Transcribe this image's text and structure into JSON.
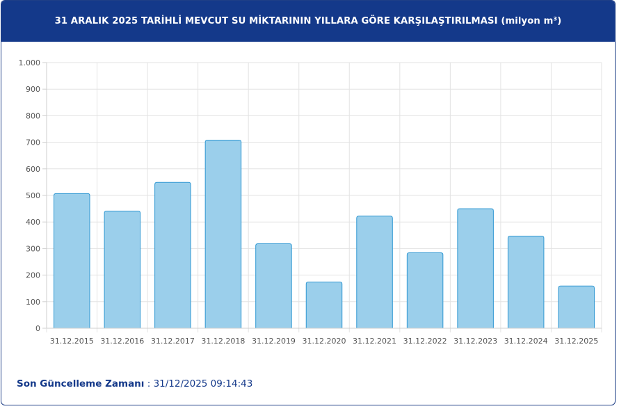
{
  "header": {
    "title": "31 ARALIK 2025 TARİHLİ MEVCUT SU MİKTARININ YILLARA GÖRE KARŞILAŞTIRILMASI (milyon m³)"
  },
  "footer": {
    "label": "Son Güncelleme Zamanı",
    "separator": " : ",
    "value": "31/12/2025 09:14:43"
  },
  "colors": {
    "header_bg": "#14398a",
    "bar_fill": "#9bcfeb",
    "bar_stroke": "#2f97d2",
    "grid": "#e3e3e3"
  },
  "chart_data": {
    "type": "bar",
    "title": "31 ARALIK 2025 TARİHLİ MEVCUT SU MİKTARININ YILLARA GÖRE KARŞILAŞTIRILMASI (milyon m³)",
    "categories": [
      "31.12.2015",
      "31.12.2016",
      "31.12.2017",
      "31.12.2018",
      "31.12.2019",
      "31.12.2020",
      "31.12.2021",
      "31.12.2022",
      "31.12.2023",
      "31.12.2024",
      "31.12.2025"
    ],
    "values": [
      507,
      441,
      549,
      708,
      318,
      174,
      422,
      284,
      450,
      347,
      159
    ],
    "ylim": [
      0,
      1000
    ],
    "yticks": [
      0,
      100,
      200,
      300,
      400,
      500,
      600,
      700,
      800,
      900,
      1000
    ],
    "ytick_labels": [
      "0",
      "100",
      "200",
      "300",
      "400",
      "500",
      "600",
      "700",
      "800",
      "900",
      "1.000"
    ],
    "grid": true,
    "legend": "none",
    "xlabel": "",
    "ylabel": ""
  }
}
